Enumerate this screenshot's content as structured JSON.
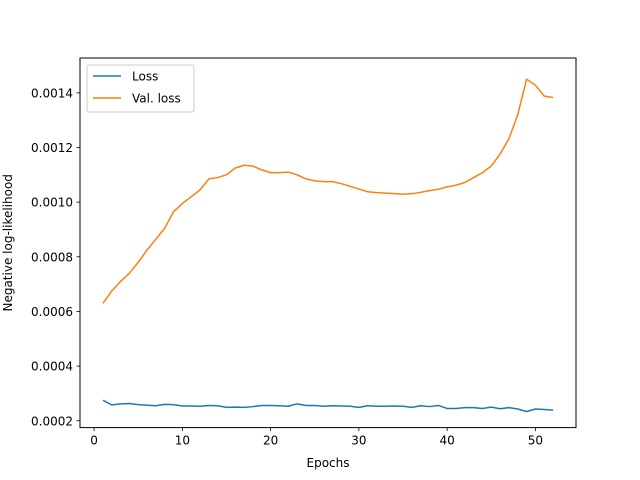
{
  "chart_data": {
    "type": "line",
    "title": "",
    "xlabel": "Epochs",
    "ylabel": "Negative log-likelihood",
    "xlim": [
      -1.6,
      54.6
    ],
    "ylim": [
      0.000175,
      0.0015275
    ],
    "xticks": [
      0,
      10,
      20,
      30,
      40,
      50
    ],
    "yticks": [
      0.0002,
      0.0004,
      0.0006,
      0.0008,
      0.001,
      0.0012,
      0.0014
    ],
    "ytick_labels": [
      "0.0002",
      "0.0004",
      "0.0006",
      "0.0008",
      "0.0010",
      "0.0012",
      "0.0014"
    ],
    "grid": false,
    "legend_position": "upper-left",
    "x": [
      1,
      2,
      3,
      4,
      5,
      6,
      7,
      8,
      9,
      10,
      11,
      12,
      13,
      14,
      15,
      16,
      17,
      18,
      19,
      20,
      21,
      22,
      23,
      24,
      25,
      26,
      27,
      28,
      29,
      30,
      31,
      32,
      33,
      34,
      35,
      36,
      37,
      38,
      39,
      40,
      41,
      42,
      43,
      44,
      45,
      46,
      47,
      48,
      49,
      50,
      51,
      52
    ],
    "series": [
      {
        "name": "Loss",
        "color": "#1f77b4",
        "values": [
          0.000275,
          0.000258,
          0.000262,
          0.000263,
          0.000259,
          0.000257,
          0.000255,
          0.00026,
          0.000259,
          0.000254,
          0.000254,
          0.000253,
          0.000256,
          0.000255,
          0.000249,
          0.00025,
          0.000249,
          0.000252,
          0.000256,
          0.000256,
          0.000255,
          0.000253,
          0.000262,
          0.000256,
          0.000256,
          0.000253,
          0.000255,
          0.000254,
          0.000253,
          0.000249,
          0.000255,
          0.000253,
          0.000253,
          0.000254,
          0.000253,
          0.000249,
          0.000255,
          0.000252,
          0.000256,
          0.000245,
          0.000245,
          0.000248,
          0.000248,
          0.000245,
          0.00025,
          0.000244,
          0.000248,
          0.000243,
          0.000234,
          0.000243,
          0.000241,
          0.000239
        ]
      },
      {
        "name": "Val. loss",
        "color": "#ff7f0e",
        "values": [
          0.00063,
          0.000675,
          0.00071,
          0.00074,
          0.00078,
          0.000825,
          0.000865,
          0.000905,
          0.000965,
          0.000995,
          0.00102,
          0.001045,
          0.001085,
          0.00109,
          0.0011,
          0.001125,
          0.001135,
          0.001132,
          0.001118,
          0.001108,
          0.001108,
          0.00111,
          0.0011,
          0.001085,
          0.001078,
          0.001075,
          0.001075,
          0.001068,
          0.001058,
          0.001048,
          0.001038,
          0.001035,
          0.001033,
          0.001031,
          0.001029,
          0.001031,
          0.001036,
          0.001042,
          0.001047,
          0.001056,
          0.001062,
          0.001072,
          0.00109,
          0.001108,
          0.001132,
          0.001176,
          0.001232,
          0.00132,
          0.00145,
          0.001428,
          0.001388,
          0.001383
        ]
      }
    ]
  }
}
